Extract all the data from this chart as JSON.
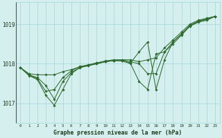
{
  "x": [
    0,
    1,
    2,
    3,
    4,
    5,
    6,
    7,
    8,
    9,
    10,
    11,
    12,
    13,
    14,
    15,
    16,
    17,
    18,
    19,
    20,
    21,
    22,
    23
  ],
  "series": [
    [
      1017.9,
      1017.75,
      1017.72,
      1017.72,
      1017.72,
      1017.8,
      1017.85,
      1017.92,
      1017.95,
      1018.0,
      1018.05,
      1018.08,
      1018.1,
      1018.1,
      1018.05,
      1018.1,
      1018.15,
      1018.4,
      1018.6,
      1018.8,
      1019.0,
      1019.1,
      1019.15,
      1019.2
    ],
    [
      1017.9,
      1017.72,
      1017.65,
      1017.45,
      1017.1,
      1017.55,
      1017.78,
      1017.9,
      1017.97,
      1018.02,
      1018.07,
      1018.1,
      1018.1,
      1018.05,
      1018.0,
      1017.75,
      1017.75,
      1018.3,
      1018.55,
      1018.75,
      1018.95,
      1019.07,
      1019.12,
      1019.2
    ],
    [
      1017.9,
      1017.72,
      1017.62,
      1017.3,
      1017.35,
      1017.65,
      1017.82,
      1017.93,
      1017.97,
      1018.02,
      1018.05,
      1018.08,
      1018.08,
      1018.02,
      1018.3,
      1018.55,
      1017.35,
      1018.1,
      1018.55,
      1018.75,
      1018.97,
      1019.08,
      1019.13,
      1019.2
    ],
    [
      1017.9,
      1017.7,
      1017.6,
      1017.2,
      1016.95,
      1017.35,
      1017.75,
      1017.9,
      1017.95,
      1018.0,
      1018.05,
      1018.08,
      1018.07,
      1018.0,
      1017.55,
      1017.35,
      1018.25,
      1018.3,
      1018.5,
      1018.72,
      1018.95,
      1019.05,
      1019.1,
      1019.2
    ]
  ],
  "ylim": [
    1016.5,
    1019.55
  ],
  "yticks": [
    1017,
    1018,
    1019
  ],
  "xlabel": "Graphe pression niveau de la mer (hPa)",
  "bg_color": "#d5efef",
  "grid_color": "#9fd4d4",
  "line_color": "#2d6a2d",
  "marker_color": "#2d6a2d",
  "tick_color": "#1a3a1a",
  "xlabel_color": "#1a3a1a",
  "figsize": [
    3.2,
    2.0
  ],
  "dpi": 100
}
